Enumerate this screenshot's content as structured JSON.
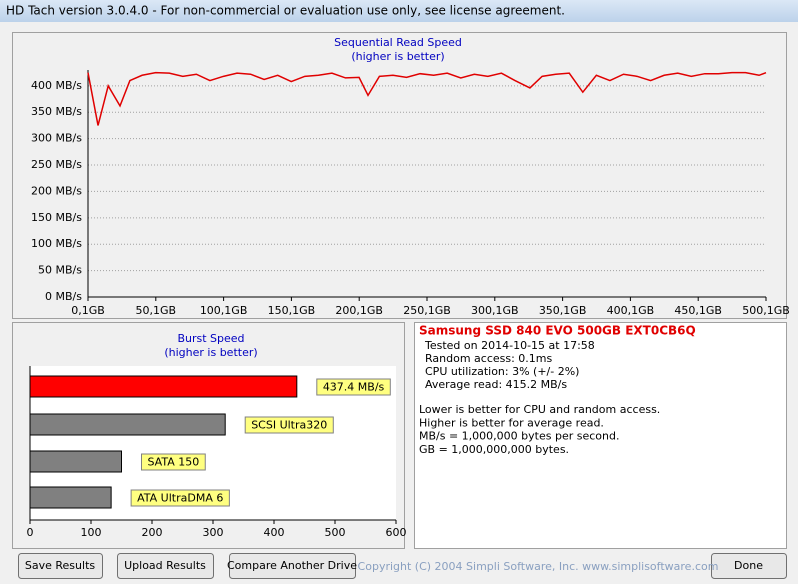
{
  "window": {
    "title": "HD Tach version 3.0.4.0  - For non-commercial or evaluation use only, see license agreement."
  },
  "chart_data": [
    {
      "type": "line",
      "title": "Sequential Read Speed",
      "subtitle": "(higher is better)",
      "color": "#e00000",
      "grid": true,
      "x": [
        0.1,
        7.5,
        15,
        23.7,
        31,
        40,
        50,
        60,
        70,
        80,
        90,
        100,
        110,
        120,
        130,
        140,
        150,
        160,
        170,
        180,
        190,
        200,
        206.6,
        215,
        225,
        235,
        245,
        255,
        265,
        275,
        285,
        295,
        305,
        315,
        326,
        335,
        345,
        355,
        365,
        375,
        385,
        395,
        405,
        415,
        425,
        435,
        445,
        455,
        465,
        475,
        485,
        495,
        500.1
      ],
      "values": [
        425,
        325,
        400,
        362,
        410,
        420,
        425,
        424,
        418,
        422,
        410,
        418,
        424,
        422,
        412,
        420,
        408,
        418,
        420,
        424,
        415,
        416,
        382,
        418,
        420,
        416,
        423,
        420,
        424,
        415,
        422,
        418,
        424,
        410,
        396,
        418,
        422,
        424,
        388,
        420,
        410,
        422,
        418,
        410,
        420,
        424,
        418,
        423,
        423,
        425,
        425,
        420,
        425
      ],
      "xlim": [
        0.1,
        500.1
      ],
      "xticks": [
        {
          "value": 0.1,
          "label": "0,1GB"
        },
        {
          "value": 50.1,
          "label": "50,1GB"
        },
        {
          "value": 100.1,
          "label": "100,1GB"
        },
        {
          "value": 150.1,
          "label": "150,1GB"
        },
        {
          "value": 200.1,
          "label": "200,1GB"
        },
        {
          "value": 250.1,
          "label": "250,1GB"
        },
        {
          "value": 300.1,
          "label": "300,1GB"
        },
        {
          "value": 350.1,
          "label": "350,1GB"
        },
        {
          "value": 400.1,
          "label": "400,1GB"
        },
        {
          "value": 450.1,
          "label": "450,1GB"
        },
        {
          "value": 500.1,
          "label": "500,1GB"
        }
      ],
      "ylim": [
        0,
        430
      ],
      "yticks": [
        {
          "value": 0,
          "label": "0 MB/s"
        },
        {
          "value": 50,
          "label": "50 MB/s"
        },
        {
          "value": 100,
          "label": "100 MB/s"
        },
        {
          "value": 150,
          "label": "150 MB/s"
        },
        {
          "value": 200,
          "label": "200 MB/s"
        },
        {
          "value": 250,
          "label": "250 MB/s"
        },
        {
          "value": 300,
          "label": "300 MB/s"
        },
        {
          "value": 350,
          "label": "350 MB/s"
        },
        {
          "value": 400,
          "label": "400 MB/s"
        }
      ]
    },
    {
      "type": "bar",
      "orientation": "horizontal",
      "title": "Burst Speed",
      "subtitle": "(higher is better)",
      "categories": [
        null,
        "SCSI Ultra320",
        "SATA 150",
        "ATA UltraDMA 6"
      ],
      "values": [
        437.4,
        320,
        150,
        133
      ],
      "value_labels": [
        "437.4 MB/s",
        null,
        null,
        null
      ],
      "colors": [
        "#ff0000",
        "#808080",
        "#808080",
        "#808080"
      ],
      "xlim": [
        0,
        600
      ],
      "xticks": [
        0,
        100,
        200,
        300,
        400,
        500,
        600
      ]
    }
  ],
  "info": {
    "drive": "Samsung SSD 840 EVO 500GB EXT0CB6Q",
    "details": [
      "Tested on 2014-10-15 at 17:58",
      "Random access: 0.1ms",
      "CPU utilization: 3% (+/- 2%)",
      "Average read: 415.2 MB/s"
    ],
    "notes": [
      "Lower is better for CPU and random access.",
      "Higher is better for average read.",
      "MB/s = 1,000,000 bytes per second.",
      "GB = 1,000,000,000 bytes."
    ]
  },
  "buttons": [
    "Save Results",
    "Upload Results",
    "Compare Another Drive",
    "Done"
  ],
  "copyright": "Copyright (C) 2004 Simpli Software, Inc. www.simplisoftware.com"
}
